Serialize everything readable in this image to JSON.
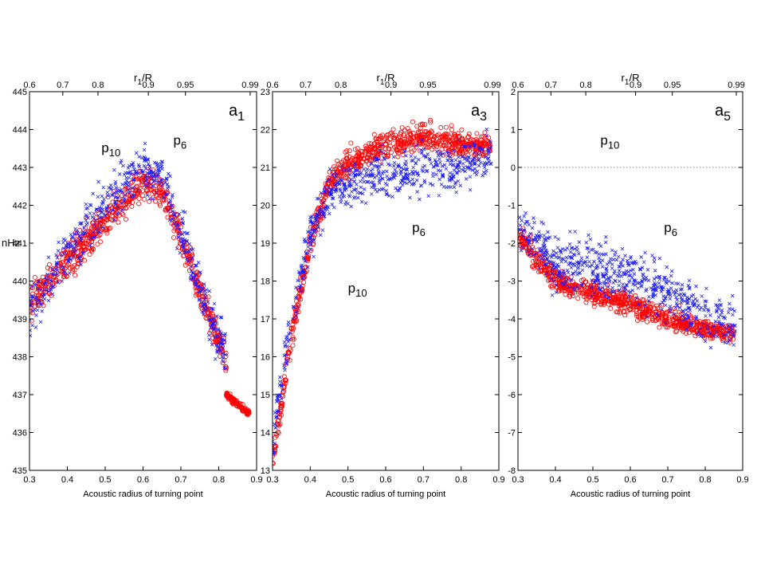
{
  "colors": {
    "series_circles": "#ff0000",
    "series_crosses": "#1a1aff",
    "axis": "#000000",
    "zero_line": "#555555"
  },
  "chart_data": [
    {
      "type": "scatter",
      "panel_label": {
        "main": "a",
        "sub": "1"
      },
      "ylabel": "nHz",
      "xlabel": "Acoustic radius of turning point",
      "top_axis_label": {
        "main": "r",
        "sub": "1",
        "rest": "/R"
      },
      "xlim": [
        0.3,
        0.9
      ],
      "ylim": [
        435,
        445
      ],
      "xticks": [
        "0.3",
        "0.4",
        "0.5",
        "0.6",
        "0.7",
        "0.8",
        "0.9"
      ],
      "yticks": [
        "435",
        "436",
        "437",
        "438",
        "439",
        "440",
        "441",
        "442",
        "443",
        "444",
        "445"
      ],
      "top_ticks": [
        {
          "pos": 0.3,
          "label": "0.6"
        },
        {
          "pos": 0.388,
          "label": "0.7"
        },
        {
          "pos": 0.481,
          "label": "0.8"
        },
        {
          "pos": 0.614,
          "label": "0.9"
        },
        {
          "pos": 0.712,
          "label": "0.95"
        },
        {
          "pos": 0.883,
          "label": "0.99"
        }
      ],
      "annotations": [
        {
          "main": "p",
          "sub": "10",
          "x": 0.49,
          "y": 443.4
        },
        {
          "main": "p",
          "sub": "6",
          "x": 0.68,
          "y": 443.6
        }
      ],
      "zero_line": false,
      "series_shape": {
        "circles": {
          "count": 700,
          "anchors": [
            [
              0.3,
              439.4
            ],
            [
              0.4,
              440.5
            ],
            [
              0.5,
              441.6
            ],
            [
              0.6,
              442.6
            ],
            [
              0.65,
              442.4
            ],
            [
              0.7,
              441.2
            ],
            [
              0.75,
              439.8
            ],
            [
              0.8,
              438.4
            ],
            [
              0.82,
              437.9
            ]
          ],
          "spread": 0.9
        },
        "crosses": {
          "count": 500,
          "anchors": [
            [
              0.3,
              439.2
            ],
            [
              0.4,
              440.7
            ],
            [
              0.5,
              442.0
            ],
            [
              0.6,
              443.0
            ],
            [
              0.65,
              442.7
            ],
            [
              0.7,
              441.4
            ],
            [
              0.75,
              439.9
            ],
            [
              0.8,
              438.5
            ],
            [
              0.82,
              438.0
            ]
          ],
          "spread": 1.1
        },
        "cluster": {
          "kind": "circles",
          "count": 120,
          "x": [
            0.82,
            0.88
          ],
          "y": [
            436.5,
            437.0
          ]
        }
      }
    },
    {
      "type": "scatter",
      "panel_label": {
        "main": "a",
        "sub": "3"
      },
      "ylabel": "",
      "xlabel": "Acoustic radius of turning point",
      "top_axis_label": {
        "main": "r",
        "sub": "1",
        "rest": "/R"
      },
      "xlim": [
        0.3,
        0.9
      ],
      "ylim": [
        13,
        23
      ],
      "xticks": [
        "0.3",
        "0.4",
        "0.5",
        "0.6",
        "0.7",
        "0.8",
        "0.9"
      ],
      "yticks": [
        "13",
        "14",
        "15",
        "16",
        "17",
        "18",
        "19",
        "20",
        "21",
        "22",
        "23"
      ],
      "top_ticks": [
        {
          "pos": 0.3,
          "label": "0.6"
        },
        {
          "pos": 0.388,
          "label": "0.7"
        },
        {
          "pos": 0.481,
          "label": "0.8"
        },
        {
          "pos": 0.614,
          "label": "0.9"
        },
        {
          "pos": 0.712,
          "label": "0.95"
        },
        {
          "pos": 0.883,
          "label": "0.99"
        }
      ],
      "annotations": [
        {
          "main": "p",
          "sub": "6",
          "x": 0.67,
          "y": 19.3
        },
        {
          "main": "p",
          "sub": "10",
          "x": 0.5,
          "y": 17.7
        }
      ],
      "zero_line": false,
      "series_shape": {
        "circles": {
          "count": 800,
          "anchors": [
            [
              0.3,
              13.2
            ],
            [
              0.35,
              16.5
            ],
            [
              0.4,
              19.0
            ],
            [
              0.45,
              20.6
            ],
            [
              0.5,
              21.1
            ],
            [
              0.6,
              21.6
            ],
            [
              0.7,
              21.8
            ],
            [
              0.8,
              21.6
            ],
            [
              0.88,
              21.6
            ]
          ],
          "spread": 0.7
        },
        "crosses": {
          "count": 600,
          "anchors": [
            [
              0.3,
              13.8
            ],
            [
              0.35,
              17.0
            ],
            [
              0.4,
              19.2
            ],
            [
              0.45,
              20.3
            ],
            [
              0.5,
              20.6
            ],
            [
              0.6,
              20.8
            ],
            [
              0.7,
              20.9
            ],
            [
              0.8,
              21.0
            ],
            [
              0.88,
              21.4
            ]
          ],
          "spread": 1.0
        }
      }
    },
    {
      "type": "scatter",
      "panel_label": {
        "main": "a",
        "sub": "5"
      },
      "ylabel": "",
      "xlabel": "Acoustic radius of turning point",
      "top_axis_label": {
        "main": "r",
        "sub": "1",
        "rest": "/R"
      },
      "xlim": [
        0.3,
        0.9
      ],
      "ylim": [
        -8,
        2
      ],
      "xticks": [
        "0.3",
        "0.4",
        "0.5",
        "0.6",
        "0.7",
        "0.8",
        "0.9"
      ],
      "yticks": [
        "-8",
        "-7",
        "-6",
        "-5",
        "-4",
        "-3",
        "-2",
        "-1",
        "0",
        "1",
        "2"
      ],
      "top_ticks": [
        {
          "pos": 0.3,
          "label": "0.6"
        },
        {
          "pos": 0.388,
          "label": "0.7"
        },
        {
          "pos": 0.481,
          "label": "0.8"
        },
        {
          "pos": 0.614,
          "label": "0.9"
        },
        {
          "pos": 0.712,
          "label": "0.95"
        },
        {
          "pos": 0.883,
          "label": "0.99"
        }
      ],
      "annotations": [
        {
          "main": "p",
          "sub": "10",
          "x": 0.52,
          "y": 0.6
        },
        {
          "main": "p",
          "sub": "6",
          "x": 0.69,
          "y": -1.7
        }
      ],
      "zero_line": true,
      "series_shape": {
        "circles": {
          "count": 800,
          "anchors": [
            [
              0.3,
              -1.8
            ],
            [
              0.35,
              -2.4
            ],
            [
              0.4,
              -3.0
            ],
            [
              0.5,
              -3.3
            ],
            [
              0.6,
              -3.6
            ],
            [
              0.7,
              -4.0
            ],
            [
              0.8,
              -4.3
            ],
            [
              0.88,
              -4.4
            ]
          ],
          "spread": 0.6
        },
        "crosses": {
          "count": 600,
          "anchors": [
            [
              0.3,
              -1.5
            ],
            [
              0.35,
              -2.0
            ],
            [
              0.4,
              -2.5
            ],
            [
              0.5,
              -2.6
            ],
            [
              0.6,
              -2.8
            ],
            [
              0.7,
              -3.3
            ],
            [
              0.8,
              -3.9
            ],
            [
              0.88,
              -4.2
            ]
          ],
          "spread": 1.2
        }
      }
    }
  ]
}
